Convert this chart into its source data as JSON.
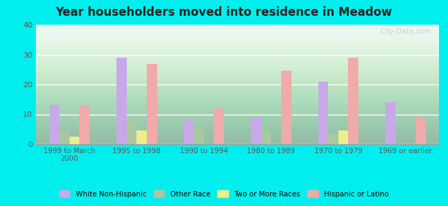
{
  "title": "Year householders moved into residence in Meadow",
  "categories": [
    "1999 to March\n2000",
    "1995 to 1998",
    "1990 to 1994",
    "1980 to 1989",
    "1970 to 1979",
    "1969 or earlier"
  ],
  "series": {
    "White Non-Hispanic": [
      13,
      29,
      8,
      9,
      21,
      14
    ],
    "Other Race": [
      4.5,
      8,
      5.5,
      4.5,
      3.5,
      0
    ],
    "Two or More Races": [
      2.5,
      4.5,
      0,
      0,
      4.5,
      0
    ],
    "Hispanic or Latino": [
      13,
      27,
      12,
      24.5,
      29,
      9
    ]
  },
  "colors": {
    "White Non-Hispanic": "#c8a8e8",
    "Other Race": "#aac8a0",
    "Two or More Races": "#eeee88",
    "Hispanic or Latino": "#f0aaaa"
  },
  "ylim": [
    0,
    40
  ],
  "yticks": [
    0,
    10,
    20,
    30,
    40
  ],
  "background_color": "#00eeee",
  "bar_width": 0.15
}
